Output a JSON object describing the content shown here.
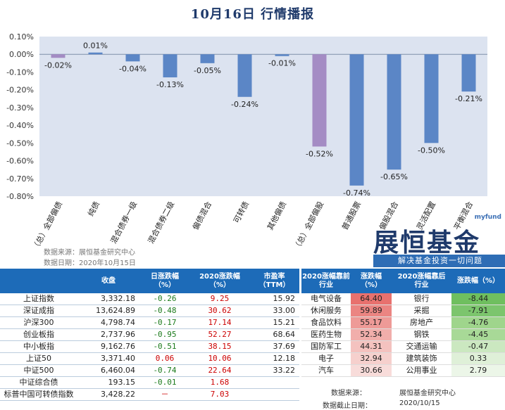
{
  "page_title": "10月16日  行情播报",
  "colors": {
    "bar_main": "#5b86c6",
    "bar_highlight": "#a48cc4",
    "plot_bg": "#dce3f0",
    "header_blue": "#1d6bb8",
    "red": "#e8716e",
    "green": "#9fd58c"
  },
  "chart_data": {
    "type": "bar",
    "categories": [
      "（总）全部偏债",
      "纯债",
      "混合债券一级",
      "混合债券二级",
      "偏债混合",
      "可转债",
      "其他偏债",
      "（总）全部偏股",
      "普通股票",
      "偏股混合",
      "灵活配置",
      "平衡混合"
    ],
    "values": [
      -0.02,
      0.01,
      -0.04,
      -0.13,
      -0.05,
      -0.24,
      -0.01,
      -0.52,
      -0.74,
      -0.65,
      -0.5,
      -0.21
    ],
    "value_labels": [
      "-0.02%",
      "0.01%",
      "-0.04%",
      "-0.13%",
      "-0.05%",
      "-0.24%",
      "-0.01%",
      "-0.52%",
      "-0.74%",
      "-0.65%",
      "-0.50%",
      "-0.21%"
    ],
    "highlight_indices": [
      0,
      7
    ],
    "ylim": [
      -0.8,
      0.1
    ],
    "yticks": [
      "0.10%",
      "0.00%",
      "-0.10%",
      "-0.20%",
      "-0.30%",
      "-0.40%",
      "-0.50%",
      "-0.60%",
      "-0.70%",
      "-0.80%"
    ],
    "ytick_values": [
      0.1,
      0.0,
      -0.1,
      -0.2,
      -0.3,
      -0.4,
      -0.5,
      -0.6,
      -0.7,
      -0.8
    ],
    "grid": false
  },
  "source_lines": [
    "数据来源：展恒基金研究中心",
    "数据日期：2020年10月15日"
  ],
  "brand": {
    "site": "myfund",
    "name": "展恒基金",
    "slogan": "解决基金投资一切问题"
  },
  "index_table": {
    "headers": [
      "",
      "收盘",
      "日涨跌幅\n（%）",
      "2020涨跌幅\n（%）",
      "市盈率\n（TTM）"
    ],
    "rows": [
      {
        "name": "上证指数",
        "close": "3,332.18",
        "day": "-0.26",
        "ytd": "9.25",
        "pe": "15.92"
      },
      {
        "name": "深证成指",
        "close": "13,624.89",
        "day": "-0.48",
        "ytd": "30.62",
        "pe": "33.00"
      },
      {
        "name": "沪深300",
        "close": "4,798.74",
        "day": "-0.17",
        "ytd": "17.14",
        "pe": "15.21"
      },
      {
        "name": "创业板指",
        "close": "2,737.96",
        "day": "-0.95",
        "ytd": "52.27",
        "pe": "68.64"
      },
      {
        "name": "中小板指",
        "close": "9,162.76",
        "day": "-0.51",
        "ytd": "38.15",
        "pe": "37.69"
      },
      {
        "name": "上证50",
        "close": "3,371.40",
        "day": "0.06",
        "ytd": "10.06",
        "pe": "12.18"
      },
      {
        "name": "中证500",
        "close": "6,460.04",
        "day": "-0.74",
        "ytd": "22.64",
        "pe": "33.22"
      },
      {
        "name": "中证综合债",
        "close": "193.15",
        "day": "-0.01",
        "ytd": "1.68",
        "pe": ""
      },
      {
        "name": "标普中国可转债指数",
        "close": "3,428.22",
        "day": "－",
        "ytd": "7.03",
        "pe": ""
      }
    ]
  },
  "industry_table": {
    "headers": [
      "2020涨幅靠前\n行业",
      "涨跌幅\n（%）",
      "2020涨幅靠后\n行业",
      "涨跌幅（%）"
    ],
    "rows": [
      {
        "top": "电气设备",
        "top_chg": "64.40",
        "bot": "银行",
        "bot_chg": "-8.44"
      },
      {
        "top": "休闲服务",
        "top_chg": "59.89",
        "bot": "采掘",
        "bot_chg": "-7.91"
      },
      {
        "top": "食品饮料",
        "top_chg": "55.17",
        "bot": "房地产",
        "bot_chg": "-4.76"
      },
      {
        "top": "医药生物",
        "top_chg": "52.34",
        "bot": "钢铁",
        "bot_chg": "-4.45"
      },
      {
        "top": "国防军工",
        "top_chg": "44.31",
        "bot": "交通运输",
        "bot_chg": "-0.47"
      },
      {
        "top": "电子",
        "top_chg": "32.94",
        "bot": "建筑装饰",
        "bot_chg": "0.33"
      },
      {
        "top": "汽车",
        "top_chg": "30.66",
        "bot": "公用事业",
        "bot_chg": "2.79"
      }
    ],
    "top_shades": [
      "#e8716e",
      "#eb8582",
      "#ee9a97",
      "#f1aeab",
      "#f4c2bf",
      "#f6d0cd",
      "#f8dcda"
    ],
    "bot_shades": [
      "#6fbf5f",
      "#7cc56d",
      "#9fd58c",
      "#a8d997",
      "#cbe8c0",
      "#dff0d8",
      "#ecf6e8"
    ]
  },
  "footer": {
    "source_label": "数据来源：",
    "source_value": "展恒基金研究中心",
    "date_label": "数据截止日期：",
    "date_value": "2020/10/15"
  }
}
